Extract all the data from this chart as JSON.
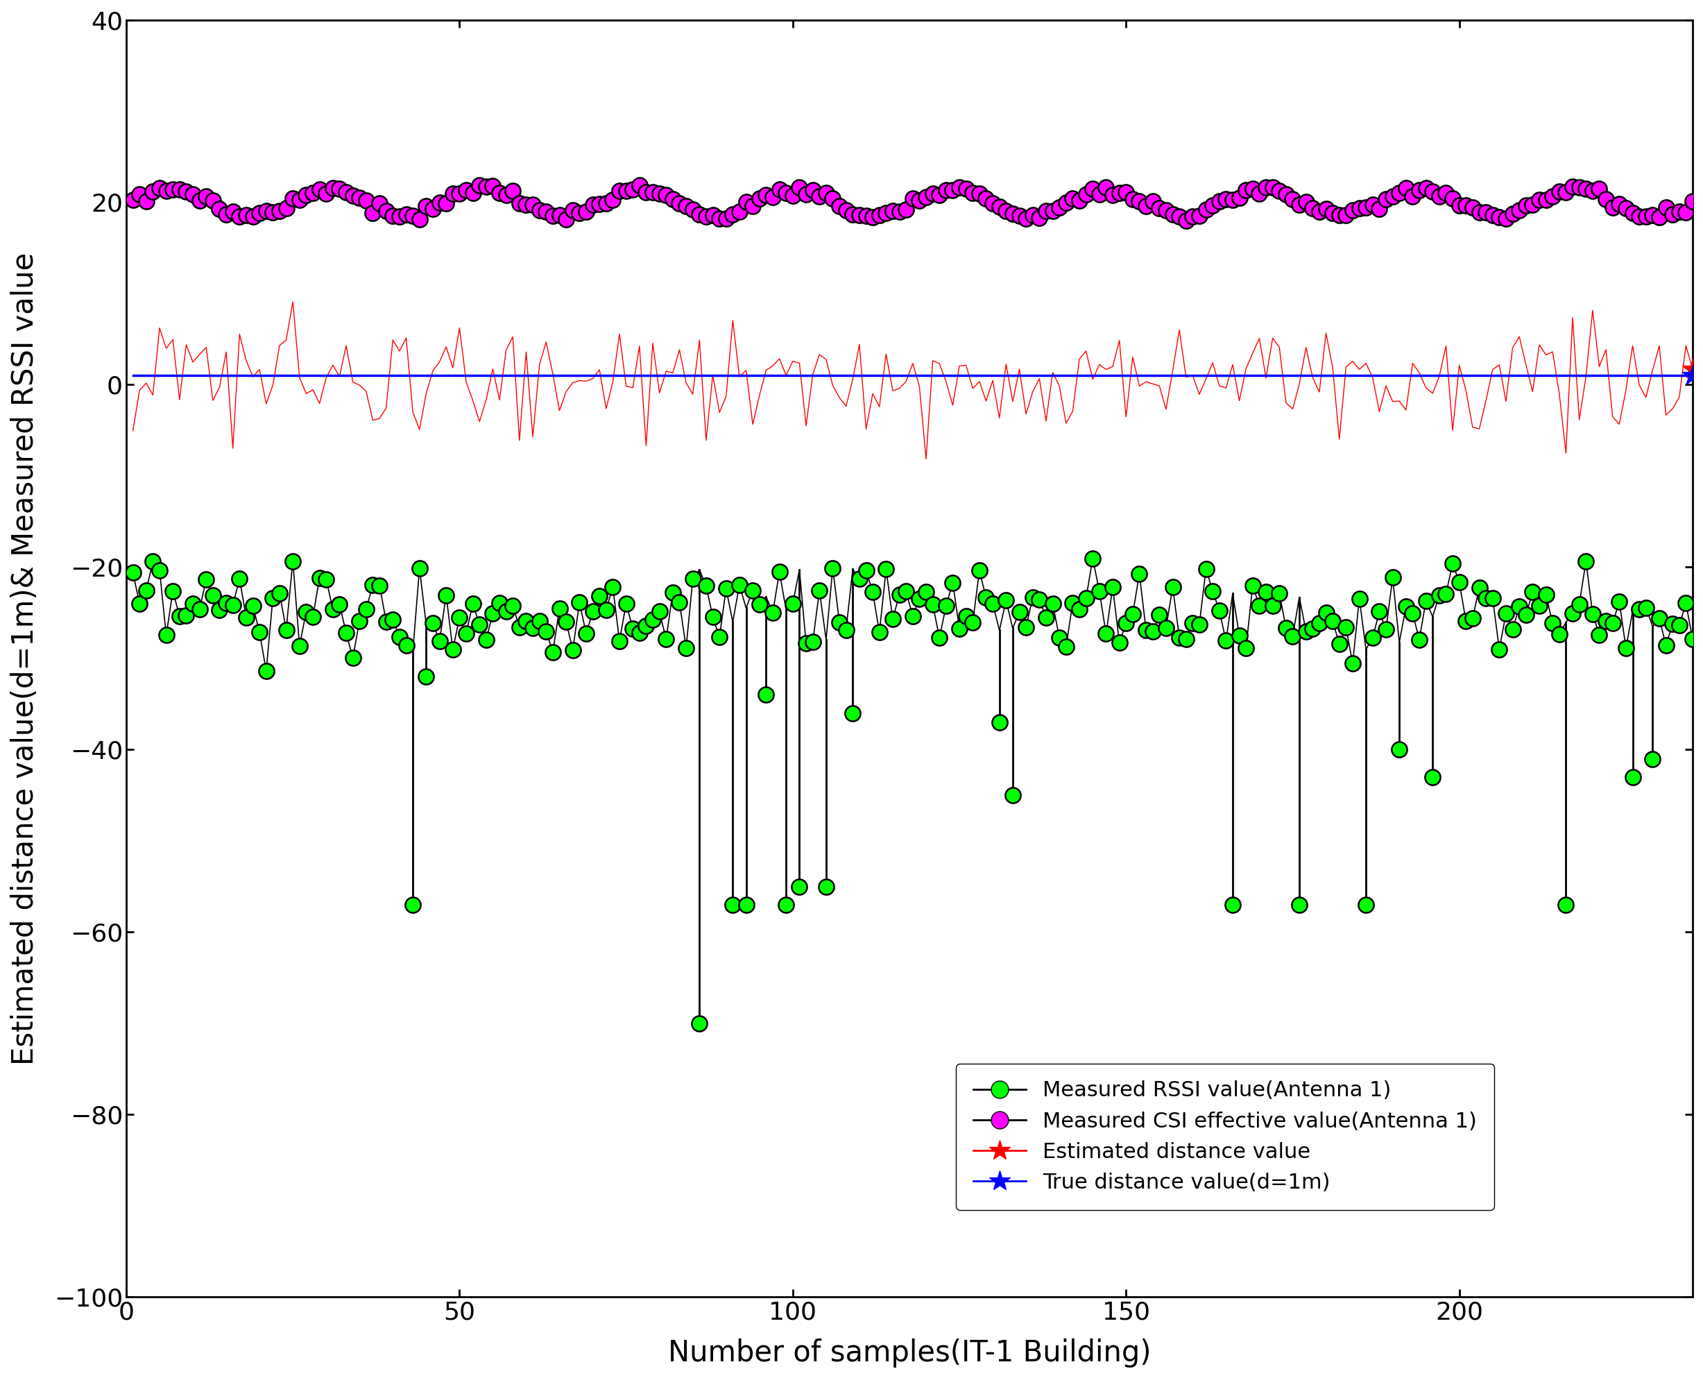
{
  "title": "",
  "xlabel": "Number of samples(IT-1 Building)",
  "ylabel": "Estimated distance value(d=1m)& Measured RSSI value",
  "xlim": [
    0,
    235
  ],
  "ylim": [
    -100,
    40
  ],
  "yticks": [
    -100,
    -80,
    -60,
    -40,
    -20,
    0,
    20,
    40
  ],
  "xticks": [
    0,
    50,
    100,
    150,
    200
  ],
  "n_samples": 235,
  "rssi_base": -25.0,
  "rssi_noise": 2.5,
  "csi_base": 20.0,
  "csi_noise": 1.5,
  "est_dist_noise": 3.0,
  "true_dist": 1.0,
  "rssi_color": "#00FF00",
  "csi_color": "#FF00FF",
  "est_color": "#FF0000",
  "true_color": "#0000FF",
  "background_color": "#FFFFFF",
  "legend_labels": [
    "Measured RSSI value(Antenna 1)",
    "Measured CSI effective value(Antenna 1)",
    "Estimated distance value",
    "True distance value(d=1m)"
  ],
  "spike_indices": [
    42,
    44,
    85,
    90,
    92,
    95,
    98,
    100,
    104,
    108,
    130,
    132,
    165,
    175,
    185,
    190,
    195,
    215,
    225,
    228
  ],
  "spike_values": [
    -57,
    -32,
    -70,
    -57,
    -57,
    -34,
    -57,
    -55,
    -55,
    -36,
    -37,
    -45,
    -57,
    -57,
    -57,
    -40,
    -43,
    -57,
    -43,
    -41
  ]
}
